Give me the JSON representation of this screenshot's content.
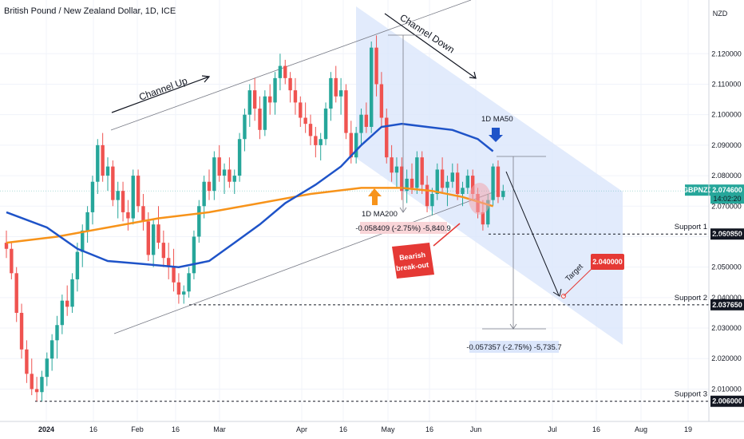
{
  "chart_data": {
    "type": "candlestick",
    "title": "British Pound / New Zealand Dollar, 1D, ICE",
    "currency": "NZD",
    "ylim": [
      2.002,
      2.135
    ],
    "y_ticks": [
      "2.120000",
      "2.110000",
      "2.100000",
      "2.090000",
      "2.080000",
      "2.070000",
      "2.060000",
      "2.050000",
      "2.040000",
      "2.030000",
      "2.020000",
      "2.010000"
    ],
    "x_ticks": [
      "2024",
      "16",
      "Feb",
      "16",
      "Mar",
      "Apr",
      "16",
      "May",
      "16",
      "Jun",
      "Jul",
      "16",
      "Aug",
      "19"
    ],
    "price_label": {
      "symbol": "GBPNZD",
      "value": "2.074600",
      "time": "14:02:20"
    },
    "colors": {
      "up": "#26a69a",
      "down": "#ef5350",
      "ma50": "#1e53c8",
      "ma200": "#f7931a",
      "channel_down_fill": "#dbe6fb",
      "target": "#e53935",
      "badge_dark": "#131722"
    },
    "candles": [
      {
        "o": 2.058,
        "h": 2.062,
        "l": 2.053,
        "c": 2.056
      },
      {
        "o": 2.056,
        "h": 2.058,
        "l": 2.046,
        "c": 2.048
      },
      {
        "o": 2.048,
        "h": 2.05,
        "l": 2.032,
        "c": 2.035
      },
      {
        "o": 2.035,
        "h": 2.038,
        "l": 2.02,
        "c": 2.023
      },
      {
        "o": 2.023,
        "h": 2.026,
        "l": 2.012,
        "c": 2.015
      },
      {
        "o": 2.015,
        "h": 2.02,
        "l": 2.008,
        "c": 2.01
      },
      {
        "o": 2.01,
        "h": 2.014,
        "l": 2.006,
        "c": 2.009
      },
      {
        "o": 2.009,
        "h": 2.016,
        "l": 2.006,
        "c": 2.014
      },
      {
        "o": 2.014,
        "h": 2.022,
        "l": 2.011,
        "c": 2.02
      },
      {
        "o": 2.02,
        "h": 2.028,
        "l": 2.016,
        "c": 2.026
      },
      {
        "o": 2.026,
        "h": 2.034,
        "l": 2.02,
        "c": 2.031
      },
      {
        "o": 2.031,
        "h": 2.041,
        "l": 2.028,
        "c": 2.039
      },
      {
        "o": 2.039,
        "h": 2.044,
        "l": 2.034,
        "c": 2.037
      },
      {
        "o": 2.037,
        "h": 2.048,
        "l": 2.035,
        "c": 2.046
      },
      {
        "o": 2.046,
        "h": 2.058,
        "l": 2.042,
        "c": 2.055
      },
      {
        "o": 2.055,
        "h": 2.064,
        "l": 2.05,
        "c": 2.062
      },
      {
        "o": 2.062,
        "h": 2.07,
        "l": 2.058,
        "c": 2.068
      },
      {
        "o": 2.068,
        "h": 2.08,
        "l": 2.064,
        "c": 2.078
      },
      {
        "o": 2.078,
        "h": 2.092,
        "l": 2.074,
        "c": 2.09
      },
      {
        "o": 2.09,
        "h": 2.094,
        "l": 2.078,
        "c": 2.08
      },
      {
        "o": 2.08,
        "h": 2.086,
        "l": 2.075,
        "c": 2.083
      },
      {
        "o": 2.083,
        "h": 2.085,
        "l": 2.07,
        "c": 2.072
      },
      {
        "o": 2.072,
        "h": 2.078,
        "l": 2.066,
        "c": 2.075
      },
      {
        "o": 2.075,
        "h": 2.078,
        "l": 2.065,
        "c": 2.068
      },
      {
        "o": 2.068,
        "h": 2.072,
        "l": 2.062,
        "c": 2.066
      },
      {
        "o": 2.066,
        "h": 2.082,
        "l": 2.064,
        "c": 2.08
      },
      {
        "o": 2.08,
        "h": 2.082,
        "l": 2.068,
        "c": 2.07
      },
      {
        "o": 2.07,
        "h": 2.074,
        "l": 2.062,
        "c": 2.065
      },
      {
        "o": 2.065,
        "h": 2.068,
        "l": 2.052,
        "c": 2.054
      },
      {
        "o": 2.054,
        "h": 2.066,
        "l": 2.05,
        "c": 2.064
      },
      {
        "o": 2.064,
        "h": 2.07,
        "l": 2.056,
        "c": 2.058
      },
      {
        "o": 2.058,
        "h": 2.062,
        "l": 2.05,
        "c": 2.053
      },
      {
        "o": 2.053,
        "h": 2.058,
        "l": 2.046,
        "c": 2.05
      },
      {
        "o": 2.05,
        "h": 2.056,
        "l": 2.042,
        "c": 2.045
      },
      {
        "o": 2.045,
        "h": 2.048,
        "l": 2.038,
        "c": 2.041
      },
      {
        "o": 2.041,
        "h": 2.044,
        "l": 2.038,
        "c": 2.042
      },
      {
        "o": 2.042,
        "h": 2.05,
        "l": 2.04,
        "c": 2.048
      },
      {
        "o": 2.048,
        "h": 2.062,
        "l": 2.046,
        "c": 2.06
      },
      {
        "o": 2.06,
        "h": 2.072,
        "l": 2.058,
        "c": 2.07
      },
      {
        "o": 2.07,
        "h": 2.08,
        "l": 2.066,
        "c": 2.078
      },
      {
        "o": 2.078,
        "h": 2.082,
        "l": 2.072,
        "c": 2.075
      },
      {
        "o": 2.075,
        "h": 2.088,
        "l": 2.072,
        "c": 2.086
      },
      {
        "o": 2.086,
        "h": 2.09,
        "l": 2.078,
        "c": 2.08
      },
      {
        "o": 2.08,
        "h": 2.084,
        "l": 2.074,
        "c": 2.082
      },
      {
        "o": 2.082,
        "h": 2.086,
        "l": 2.076,
        "c": 2.078
      },
      {
        "o": 2.078,
        "h": 2.082,
        "l": 2.074,
        "c": 2.08
      },
      {
        "o": 2.08,
        "h": 2.094,
        "l": 2.078,
        "c": 2.092
      },
      {
        "o": 2.092,
        "h": 2.102,
        "l": 2.088,
        "c": 2.1
      },
      {
        "o": 2.1,
        "h": 2.11,
        "l": 2.096,
        "c": 2.108
      },
      {
        "o": 2.108,
        "h": 2.112,
        "l": 2.098,
        "c": 2.102
      },
      {
        "o": 2.102,
        "h": 2.106,
        "l": 2.092,
        "c": 2.095
      },
      {
        "o": 2.095,
        "h": 2.108,
        "l": 2.093,
        "c": 2.106
      },
      {
        "o": 2.106,
        "h": 2.11,
        "l": 2.1,
        "c": 2.104
      },
      {
        "o": 2.104,
        "h": 2.114,
        "l": 2.1,
        "c": 2.112
      },
      {
        "o": 2.112,
        "h": 2.12,
        "l": 2.108,
        "c": 2.116
      },
      {
        "o": 2.116,
        "h": 2.118,
        "l": 2.11,
        "c": 2.112
      },
      {
        "o": 2.112,
        "h": 2.114,
        "l": 2.104,
        "c": 2.108
      },
      {
        "o": 2.108,
        "h": 2.112,
        "l": 2.1,
        "c": 2.104
      },
      {
        "o": 2.104,
        "h": 2.106,
        "l": 2.096,
        "c": 2.099
      },
      {
        "o": 2.099,
        "h": 2.104,
        "l": 2.094,
        "c": 2.097
      },
      {
        "o": 2.097,
        "h": 2.1,
        "l": 2.09,
        "c": 2.093
      },
      {
        "o": 2.093,
        "h": 2.096,
        "l": 2.086,
        "c": 2.09
      },
      {
        "o": 2.09,
        "h": 2.094,
        "l": 2.085,
        "c": 2.092
      },
      {
        "o": 2.092,
        "h": 2.104,
        "l": 2.09,
        "c": 2.102
      },
      {
        "o": 2.102,
        "h": 2.114,
        "l": 2.098,
        "c": 2.112
      },
      {
        "o": 2.112,
        "h": 2.116,
        "l": 2.104,
        "c": 2.106
      },
      {
        "o": 2.106,
        "h": 2.112,
        "l": 2.1,
        "c": 2.108
      },
      {
        "o": 2.108,
        "h": 2.11,
        "l": 2.092,
        "c": 2.094
      },
      {
        "o": 2.094,
        "h": 2.098,
        "l": 2.084,
        "c": 2.086
      },
      {
        "o": 2.086,
        "h": 2.096,
        "l": 2.084,
        "c": 2.094
      },
      {
        "o": 2.094,
        "h": 2.102,
        "l": 2.09,
        "c": 2.1
      },
      {
        "o": 2.1,
        "h": 2.104,
        "l": 2.094,
        "c": 2.096
      },
      {
        "o": 2.096,
        "h": 2.124,
        "l": 2.094,
        "c": 2.122
      },
      {
        "o": 2.122,
        "h": 2.126,
        "l": 2.106,
        "c": 2.11
      },
      {
        "o": 2.11,
        "h": 2.114,
        "l": 2.096,
        "c": 2.099
      },
      {
        "o": 2.099,
        "h": 2.102,
        "l": 2.084,
        "c": 2.086
      },
      {
        "o": 2.086,
        "h": 2.09,
        "l": 2.078,
        "c": 2.081
      },
      {
        "o": 2.081,
        "h": 2.086,
        "l": 2.076,
        "c": 2.083
      },
      {
        "o": 2.083,
        "h": 2.086,
        "l": 2.072,
        "c": 2.075
      },
      {
        "o": 2.075,
        "h": 2.082,
        "l": 2.071,
        "c": 2.079
      },
      {
        "o": 2.079,
        "h": 2.084,
        "l": 2.074,
        "c": 2.076
      },
      {
        "o": 2.076,
        "h": 2.088,
        "l": 2.074,
        "c": 2.086
      },
      {
        "o": 2.086,
        "h": 2.088,
        "l": 2.074,
        "c": 2.077
      },
      {
        "o": 2.077,
        "h": 2.08,
        "l": 2.068,
        "c": 2.07
      },
      {
        "o": 2.07,
        "h": 2.076,
        "l": 2.067,
        "c": 2.074
      },
      {
        "o": 2.074,
        "h": 2.084,
        "l": 2.072,
        "c": 2.082
      },
      {
        "o": 2.082,
        "h": 2.086,
        "l": 2.074,
        "c": 2.076
      },
      {
        "o": 2.076,
        "h": 2.08,
        "l": 2.07,
        "c": 2.078
      },
      {
        "o": 2.078,
        "h": 2.084,
        "l": 2.076,
        "c": 2.081
      },
      {
        "o": 2.081,
        "h": 2.084,
        "l": 2.072,
        "c": 2.074
      },
      {
        "o": 2.074,
        "h": 2.078,
        "l": 2.07,
        "c": 2.076
      },
      {
        "o": 2.076,
        "h": 2.082,
        "l": 2.074,
        "c": 2.08
      },
      {
        "o": 2.08,
        "h": 2.082,
        "l": 2.072,
        "c": 2.074
      },
      {
        "o": 2.074,
        "h": 2.076,
        "l": 2.066,
        "c": 2.068
      },
      {
        "o": 2.068,
        "h": 2.072,
        "l": 2.062,
        "c": 2.064
      },
      {
        "o": 2.064,
        "h": 2.074,
        "l": 2.063,
        "c": 2.072
      },
      {
        "o": 2.072,
        "h": 2.084,
        "l": 2.07,
        "c": 2.083
      },
      {
        "o": 2.083,
        "h": 2.085,
        "l": 2.071,
        "c": 2.073
      },
      {
        "o": 2.073,
        "h": 2.077,
        "l": 2.072,
        "c": 2.075
      }
    ],
    "ma50": [
      [
        0,
        2.068
      ],
      [
        8,
        2.063
      ],
      [
        14,
        2.056
      ],
      [
        20,
        2.052
      ],
      [
        27,
        2.051
      ],
      [
        34,
        2.05
      ],
      [
        40,
        2.052
      ],
      [
        45,
        2.058
      ],
      [
        50,
        2.064
      ],
      [
        55,
        2.071
      ],
      [
        61,
        2.077
      ],
      [
        66,
        2.083
      ],
      [
        70,
        2.09
      ],
      [
        74,
        2.096
      ],
      [
        78,
        2.097
      ],
      [
        83,
        2.096
      ],
      [
        88,
        2.095
      ],
      [
        93,
        2.092
      ],
      [
        96,
        2.088
      ]
    ],
    "ma200": [
      [
        0,
        2.058
      ],
      [
        10,
        2.06
      ],
      [
        20,
        2.063
      ],
      [
        30,
        2.066
      ],
      [
        40,
        2.068
      ],
      [
        50,
        2.071
      ],
      [
        60,
        2.074
      ],
      [
        70,
        2.076
      ],
      [
        78,
        2.076
      ],
      [
        84,
        2.075
      ],
      [
        90,
        2.073
      ],
      [
        96,
        2.07
      ]
    ],
    "annotations": {
      "channel_up": "Channel Up",
      "channel_down": "Channel Down",
      "ma50_label": "1D MA50",
      "ma200_label": "1D MA200",
      "measure_top": "-0.058409 (-2.75%) -5,840.9",
      "measure_bottom": "-0.057357 (-2.75%) -5,735.7",
      "bearish_line1": "Bearish",
      "bearish_line2": "break-out",
      "target_label": "Target",
      "target_value": "2.040000"
    },
    "supports": [
      {
        "name": "Support 1",
        "value": 2.06085,
        "label": "2.060850"
      },
      {
        "name": "Support 2",
        "value": 2.03765,
        "label": "2.037650"
      },
      {
        "name": "Support 3",
        "value": 2.006,
        "label": "2.006000"
      }
    ]
  }
}
